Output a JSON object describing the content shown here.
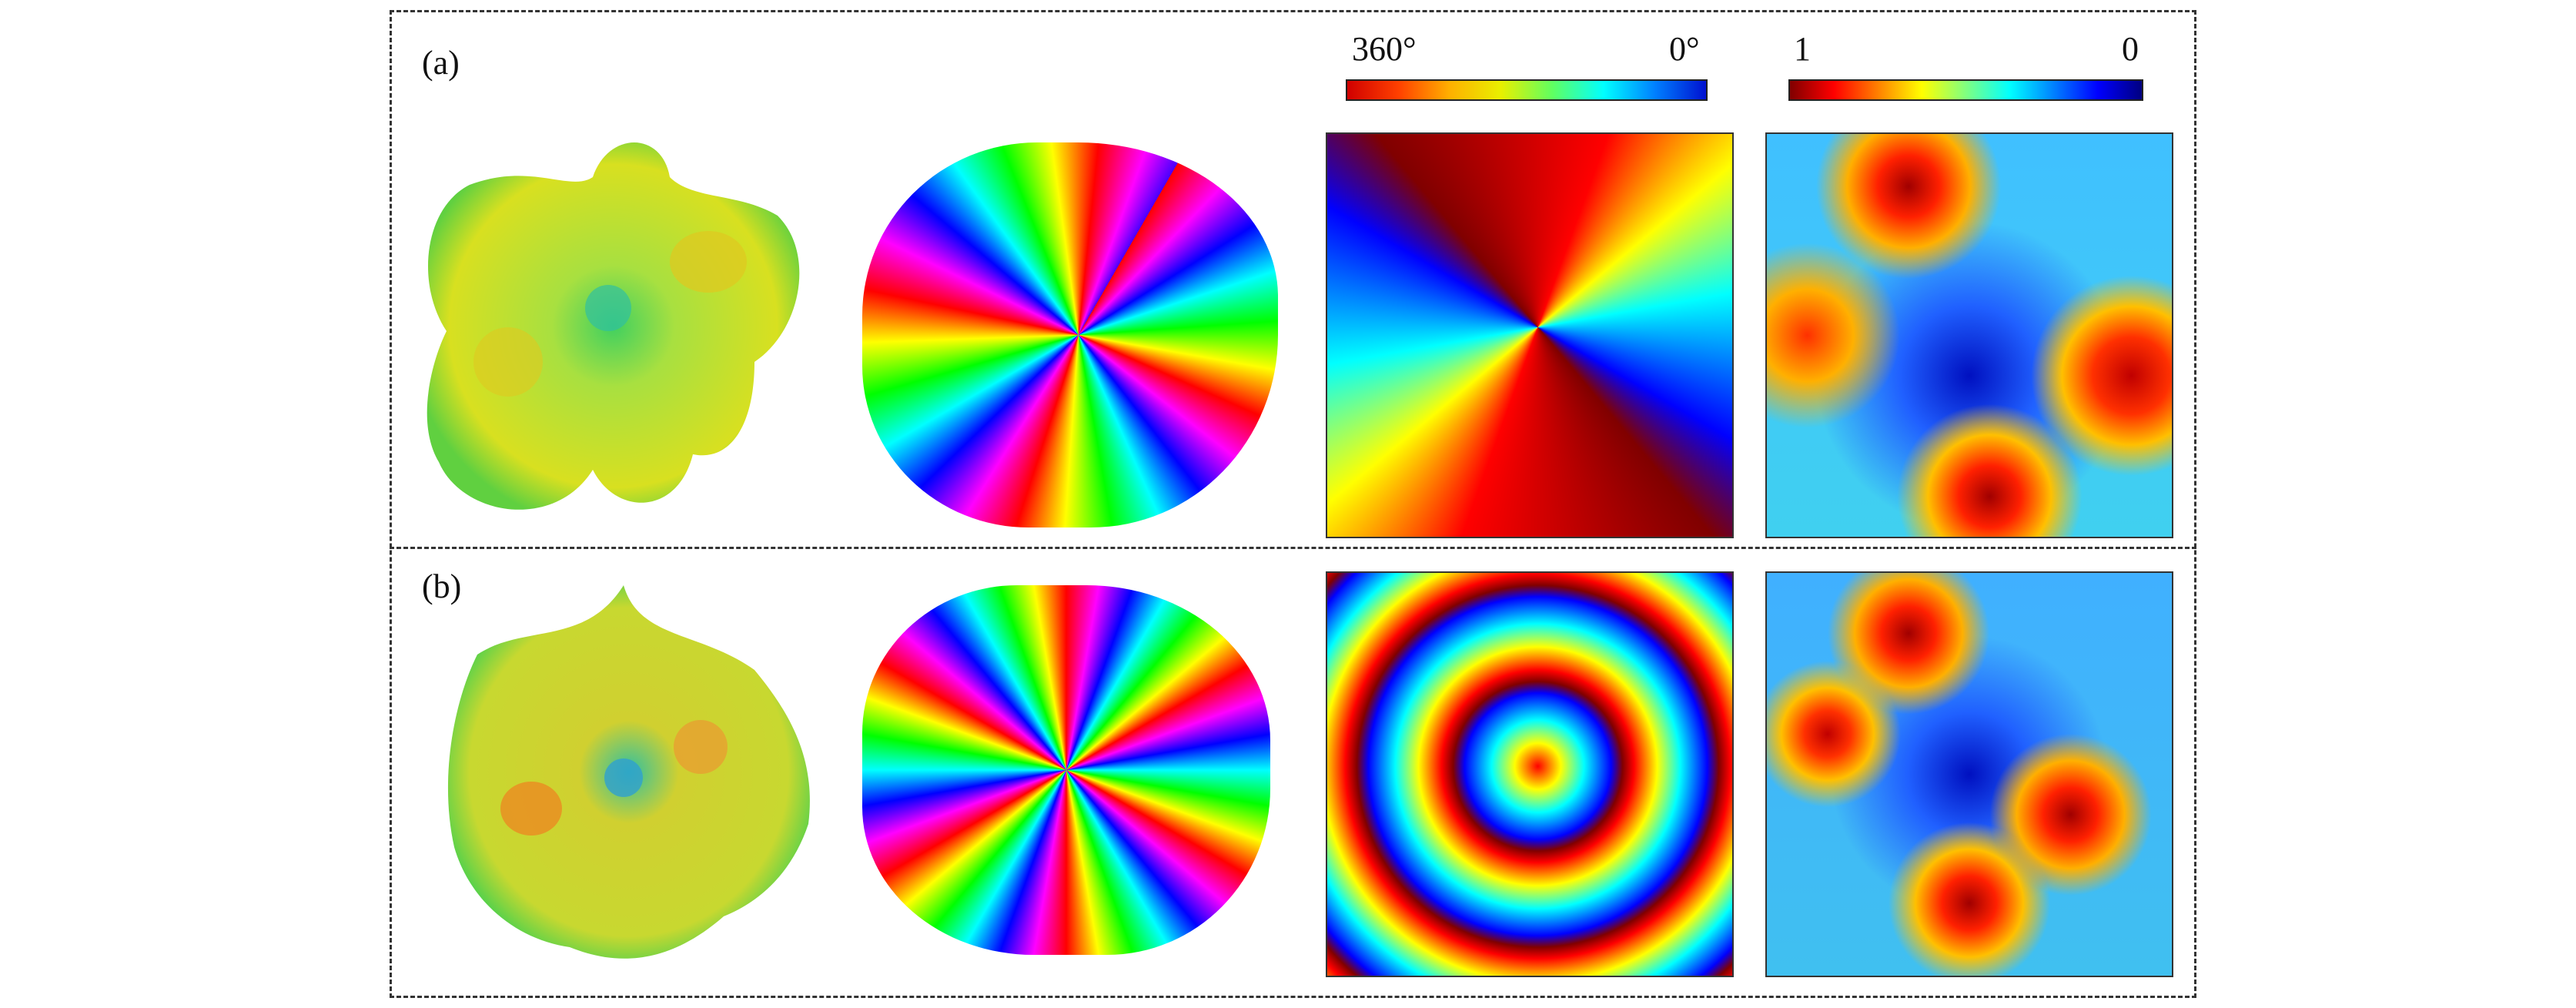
{
  "panels": [
    {
      "label": "(a)"
    },
    {
      "label": "(b)"
    }
  ],
  "colorbars": [
    {
      "left": "360°",
      "right": "0°"
    },
    {
      "left": "1",
      "right": "0"
    }
  ]
}
